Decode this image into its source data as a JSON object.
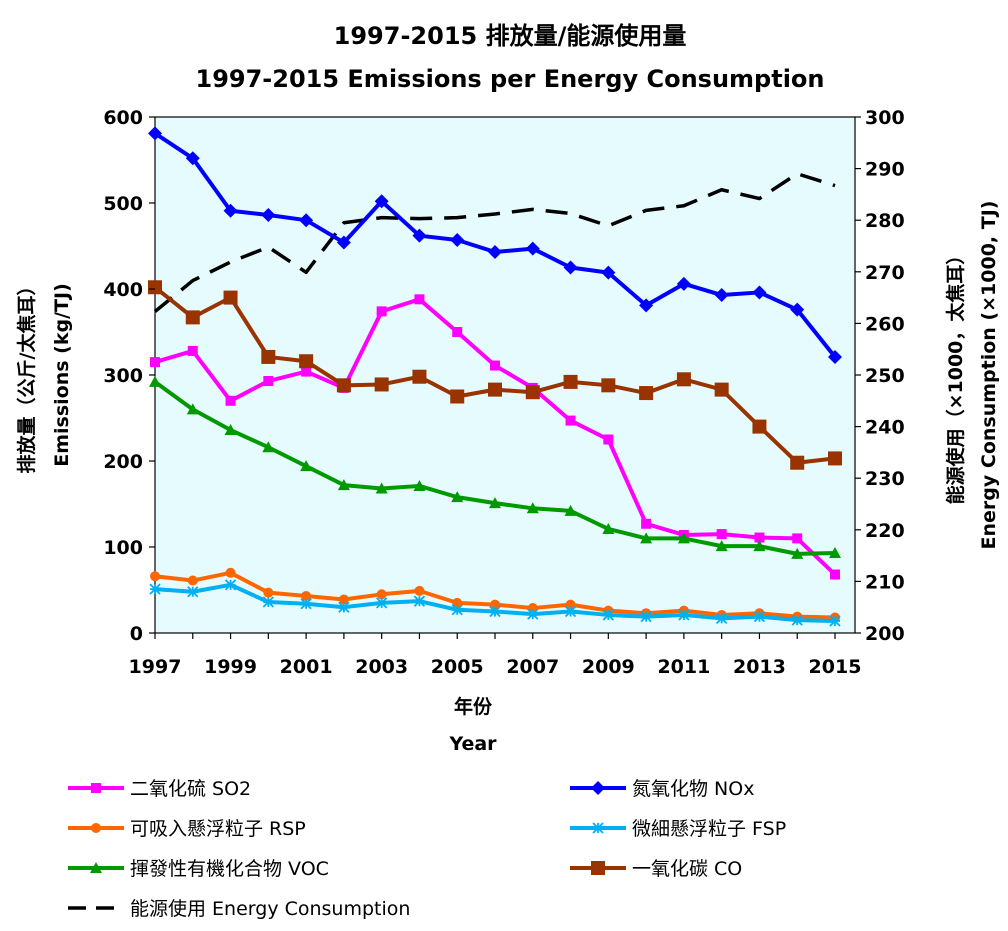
{
  "chart_data": {
    "type": "line",
    "title": "1997-2015 排放量/能源使用量",
    "subtitle": "1997-2015 Emissions per Energy Consumption",
    "xlabel_zh": "年份",
    "xlabel_en": "Year",
    "ylabel_left_zh": "排放量（公斤/太焦耳）",
    "ylabel_left_en": "Emissions (kg/TJ)",
    "ylabel_right_zh": "能源使用（×1000，太焦耳）",
    "ylabel_right_en": "Energy Consumption (×1000, TJ)",
    "x": [
      1997,
      1998,
      1999,
      2000,
      2001,
      2002,
      2003,
      2004,
      2005,
      2006,
      2007,
      2008,
      2009,
      2010,
      2011,
      2012,
      2013,
      2014,
      2015
    ],
    "x_ticks": [
      "1997",
      "1999",
      "2001",
      "2003",
      "2005",
      "2007",
      "2009",
      "2011",
      "2013",
      "2015"
    ],
    "ylim_left": [
      0,
      600
    ],
    "yticks_left": [
      "0",
      "100",
      "200",
      "300",
      "400",
      "500",
      "600"
    ],
    "ylim_right": [
      200,
      300
    ],
    "yticks_right": [
      "200",
      "210",
      "220",
      "230",
      "240",
      "250",
      "260",
      "270",
      "280",
      "290",
      "300"
    ],
    "plot_background": "#e6fbfd",
    "series": [
      {
        "name": "二氧化硫 SO2",
        "axis": "left",
        "color": "#ff00ff",
        "marker": "square-small",
        "values": [
          315,
          328,
          270,
          293,
          304,
          285,
          374,
          388,
          350,
          311,
          285,
          247,
          225,
          127,
          114,
          115,
          111,
          110,
          68
        ]
      },
      {
        "name": "氮氧化物 NOx",
        "axis": "left",
        "color": "#0000ff",
        "marker": "diamond",
        "values": [
          581,
          552,
          491,
          486,
          480,
          454,
          502,
          462,
          457,
          443,
          447,
          425,
          419,
          381,
          406,
          393,
          396,
          376,
          321
        ]
      },
      {
        "name": "可吸入懸浮粒子 RSP",
        "axis": "left",
        "color": "#ff6600",
        "marker": "circle",
        "values": [
          66,
          61,
          70,
          47,
          43,
          39,
          45,
          49,
          35,
          33,
          29,
          33,
          26,
          23,
          26,
          21,
          23,
          19,
          18
        ]
      },
      {
        "name": "微細懸浮粒子 FSP",
        "axis": "left",
        "color": "#00b0f0",
        "marker": "star",
        "values": [
          51,
          48,
          56,
          36,
          34,
          30,
          35,
          37,
          27,
          25,
          22,
          25,
          21,
          19,
          21,
          17,
          19,
          15,
          14
        ]
      },
      {
        "name": "揮發性有機化合物 VOC",
        "axis": "left",
        "color": "#009900",
        "marker": "triangle",
        "values": [
          292,
          260,
          236,
          216,
          194,
          172,
          168,
          171,
          158,
          151,
          145,
          142,
          121,
          110,
          110,
          101,
          101,
          92,
          93
        ]
      },
      {
        "name": "一氧化碳 CO",
        "axis": "left",
        "color": "#993300",
        "marker": "square-large",
        "values": [
          402,
          367,
          390,
          321,
          316,
          288,
          289,
          298,
          275,
          283,
          280,
          292,
          288,
          279,
          295,
          283,
          240,
          198,
          203
        ]
      },
      {
        "name": "能源使用 Energy Consumption",
        "axis": "right",
        "color": "#000000",
        "marker": "none",
        "dash": true,
        "values": [
          262.3,
          268.3,
          271.9,
          274.8,
          269.9,
          279.5,
          280.5,
          280.3,
          280.5,
          281.2,
          282.1,
          281.3,
          278.9,
          281.9,
          282.8,
          285.9,
          284.2,
          289.0,
          286.7
        ]
      }
    ],
    "legend_position": "bottom"
  }
}
